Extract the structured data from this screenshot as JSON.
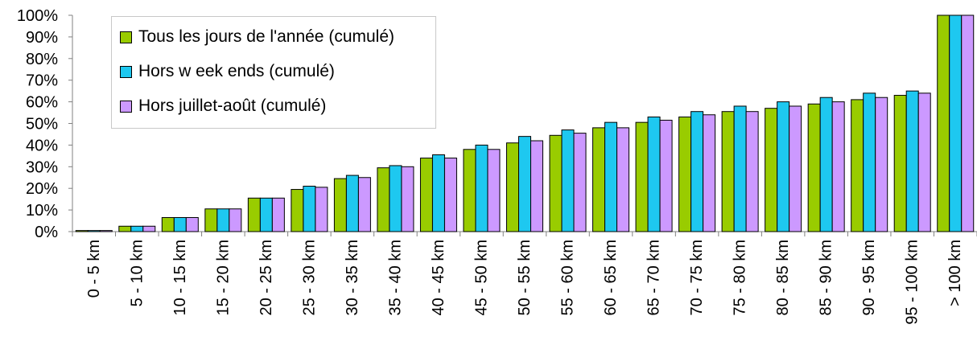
{
  "chart_data": {
    "type": "bar",
    "categories": [
      "0 - 5 km",
      "5 - 10 km",
      "10 - 15 km",
      "15 - 20 km",
      "20 - 25 km",
      "25 - 30 km",
      "30 - 35 km",
      "35 - 40 km",
      "40 - 45 km",
      "45 - 50 km",
      "50 - 55 km",
      "55 - 60 km",
      "60 - 65 km",
      "65 - 70 km",
      "70 - 75 km",
      "75 - 80 km",
      "80 - 85 km",
      "85 - 90 km",
      "90 - 95 km",
      "95 - 100 km",
      "> 100 km"
    ],
    "series": [
      {
        "name": "Tous les jours de l'année (cumulé)",
        "color": "#99cc00",
        "values": [
          0.5,
          2.5,
          6.5,
          10.5,
          15.5,
          19.5,
          24.5,
          29.5,
          34,
          38,
          41,
          44.5,
          48,
          50.5,
          53,
          55.5,
          57,
          59,
          61,
          63,
          100
        ]
      },
      {
        "name": "Hors w eek ends (cumulé)",
        "color": "#1ec8f0",
        "values": [
          0.5,
          2.5,
          6.5,
          10.5,
          15.5,
          21,
          26,
          30.5,
          35.5,
          40,
          44,
          47,
          50.5,
          53,
          55.5,
          58,
          60,
          62,
          64,
          65,
          100
        ]
      },
      {
        "name": "Hors juillet-août (cumulé)",
        "color": "#cc99ff",
        "values": [
          0.5,
          2.5,
          6.5,
          10.5,
          15.5,
          20.5,
          25,
          30,
          34,
          38,
          42,
          45.5,
          48,
          51.5,
          54,
          55.5,
          58,
          60,
          62,
          64,
          100
        ]
      }
    ],
    "y_ticks": [
      "0%",
      "10%",
      "20%",
      "30%",
      "40%",
      "50%",
      "60%",
      "70%",
      "80%",
      "90%",
      "100%"
    ],
    "ylim": [
      0,
      100
    ],
    "grid": false,
    "legend_position": "top-left"
  }
}
